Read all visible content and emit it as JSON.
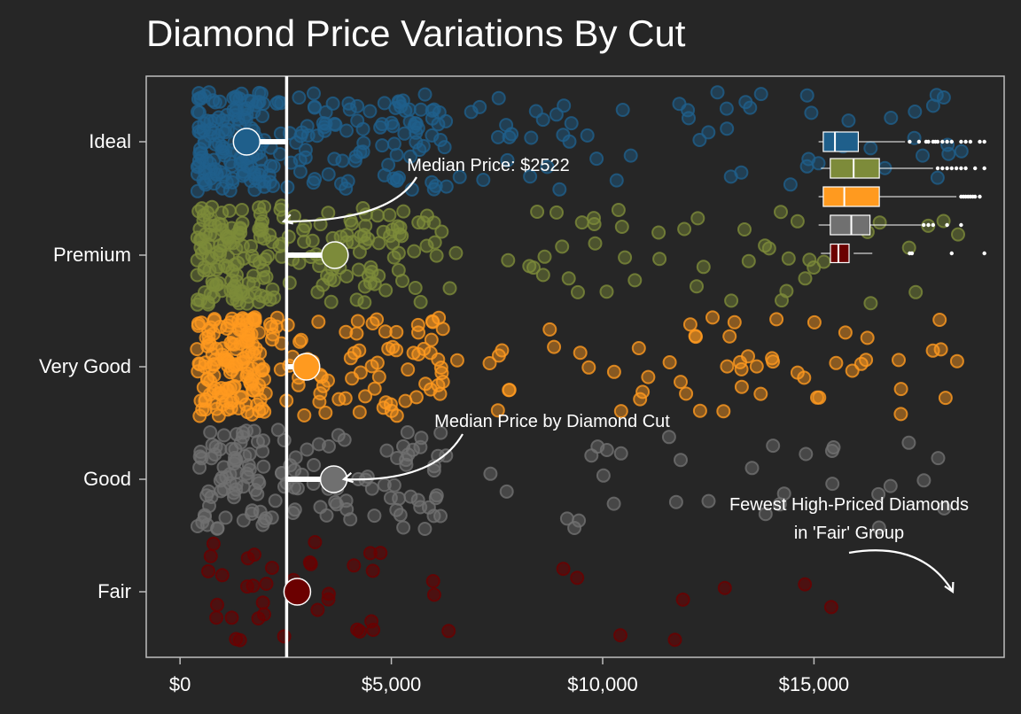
{
  "chart_data": {
    "type": "scatter",
    "title": "Diamond Price Variations By Cut",
    "xlabel": "",
    "ylabel": "",
    "xlim": [
      -800,
      19500
    ],
    "x_ticks": [
      0,
      5000,
      10000,
      15000
    ],
    "x_tick_labels": [
      "$0",
      "$5,000",
      "$10,000",
      "$15,000"
    ],
    "categories": [
      "Ideal",
      "Premium",
      "Very Good",
      "Good",
      "Fair"
    ],
    "overall_median": 2522,
    "colors": {
      "Ideal": "#1f5f8b",
      "Premium": "#7d8b3a",
      "Very Good": "#ff9a1f",
      "Good": "#707070",
      "Fair": "#6b0000"
    },
    "series": [
      {
        "name": "Ideal",
        "median": 1576,
        "box": {
          "q1": 15350,
          "q3": 16100,
          "median": 15600,
          "whisker_low": 15250,
          "whisker_high": 17100
        },
        "outliers": [
          17200,
          17400,
          17550,
          17600,
          17700,
          17750,
          17800,
          17900,
          18000,
          18100,
          18300,
          18400,
          18500,
          18700,
          18800
        ]
      },
      {
        "name": "Premium",
        "median": 3664,
        "box": {
          "q1": 15500,
          "q3": 16550,
          "median": 16000,
          "whisker_low": 15300,
          "whisker_high": 17700
        },
        "outliers": [
          17800,
          17900,
          18000,
          18100,
          18200,
          18300,
          18400,
          18600,
          18800
        ]
      },
      {
        "name": "Very Good",
        "median": 2990,
        "box": {
          "q1": 15350,
          "q3": 16550,
          "median": 15800,
          "whisker_low": 15250,
          "whisker_high": 18200
        },
        "outliers": [
          18300,
          18350,
          18400,
          18450,
          18500,
          18550,
          18600,
          18700
        ]
      },
      {
        "name": "Good",
        "median": 3636,
        "box": {
          "q1": 15500,
          "q3": 16350,
          "median": 15950,
          "whisker_low": 15250,
          "whisker_high": 17450
        },
        "outliers": [
          17500,
          17600,
          17700,
          18000,
          18300
        ]
      },
      {
        "name": "Fair",
        "median": 2774,
        "box": {
          "q1": 15550,
          "q3": 16000,
          "median": 15750,
          "whisker_low": 15300,
          "whisker_high": 16400
        },
        "outliers": [
          17200,
          17250,
          18100,
          18800
        ]
      }
    ],
    "annotations": [
      {
        "text": "Median Price: $2522",
        "target": {
          "x": 2522,
          "category": "Premium"
        }
      },
      {
        "text": "Median Price by Diamond Cut",
        "target": {
          "x": 3636,
          "category": "Good"
        }
      },
      {
        "text": "Fewest High-Priced Diamonds\nin 'Fair' Group",
        "target": {
          "x": 18574,
          "category": "Fair"
        }
      }
    ],
    "grid": false,
    "legend": "none"
  }
}
